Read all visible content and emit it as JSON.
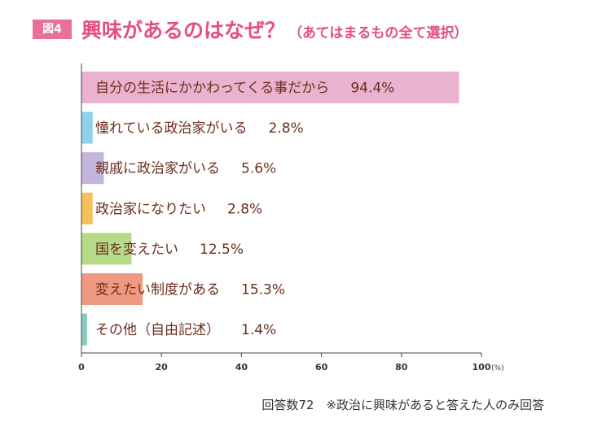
{
  "figure_label": "図4",
  "title": "興味があるのはなぜ？",
  "subtitle": "（あてはまるもの全て選択）",
  "footnote": "回答数72　※政治に興味があると答えた人のみ回答",
  "chart_data": {
    "type": "bar",
    "orientation": "horizontal",
    "title": "興味があるのはなぜ？",
    "subtitle": "（あてはまるもの全て選択）",
    "categories": [
      "自分の生活にかかわってくる事だから",
      "憧れている政治家がいる",
      "親戚に政治家がいる",
      "政治家になりたい",
      "国を変えたい",
      "変えたい制度がある",
      "その他（自由記述）"
    ],
    "values": [
      94.4,
      2.8,
      5.6,
      2.8,
      12.5,
      15.3,
      1.4
    ],
    "value_labels": [
      "94.4%",
      "2.8%",
      "5.6%",
      "2.8%",
      "12.5%",
      "15.3%",
      "1.4%"
    ],
    "colors": [
      "#e9b3cf",
      "#8fd0ec",
      "#c3b5dc",
      "#f6c05a",
      "#b7d98a",
      "#ef9a80",
      "#86cbbe"
    ],
    "xlim": [
      0,
      100
    ],
    "xticks": [
      0,
      20,
      40,
      60,
      80,
      100
    ],
    "xunit": "(%)",
    "grid": false,
    "legend": "none"
  }
}
